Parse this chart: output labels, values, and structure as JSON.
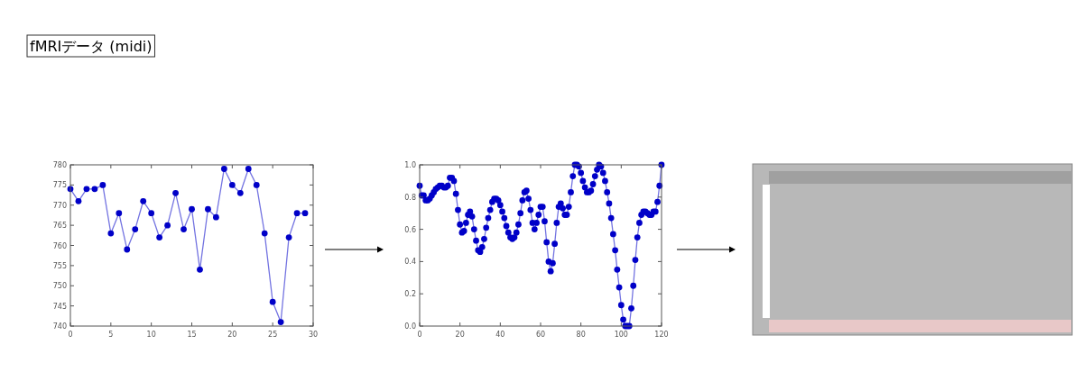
{
  "chart_data": [
    {
      "type": "line",
      "title": "fMRIデータ (midi)",
      "marker": "circle",
      "grid": false,
      "x": [
        0,
        1,
        2,
        3,
        4,
        5,
        6,
        7,
        8,
        9,
        10,
        11,
        12,
        13,
        14,
        15,
        16,
        17,
        18,
        19,
        20,
        21,
        22,
        23,
        24,
        25,
        26,
        27,
        28,
        29
      ],
      "series": [
        {
          "color": "#0000c8",
          "values": [
            774,
            771,
            774,
            774,
            775,
            763,
            768,
            759,
            764,
            771,
            768,
            762,
            765,
            773,
            764,
            769,
            754,
            769,
            767,
            779,
            775,
            773,
            779,
            775,
            763,
            746,
            741,
            762,
            768,
            768
          ]
        }
      ],
      "xlim": [
        0,
        30
      ],
      "xticks": [
        0,
        5,
        10,
        15,
        20,
        25,
        30
      ],
      "ylim": [
        740,
        780
      ],
      "yticks": [
        740,
        745,
        750,
        755,
        760,
        765,
        770,
        775,
        780
      ]
    },
    {
      "type": "line",
      "marker": "circle",
      "grid": false,
      "x": [
        0,
        1,
        2,
        3,
        4,
        5,
        6,
        7,
        8,
        9,
        10,
        11,
        12,
        13,
        14,
        15,
        16,
        17,
        18,
        19,
        20,
        21,
        22,
        23,
        24,
        25,
        26,
        27,
        28,
        29,
        30,
        31,
        32,
        33,
        34,
        35,
        36,
        37,
        38,
        39,
        40,
        41,
        42,
        43,
        44,
        45,
        46,
        47,
        48,
        49,
        50,
        51,
        52,
        53,
        54,
        55,
        56,
        57,
        58,
        59,
        60,
        61,
        62,
        63,
        64,
        65,
        66,
        67,
        68,
        69,
        70,
        71,
        72,
        73,
        74,
        75,
        76,
        77,
        78,
        79,
        80,
        81,
        82,
        83,
        84,
        85,
        86,
        87,
        88,
        89,
        90,
        91,
        92,
        93,
        94,
        95,
        96,
        97,
        98,
        99,
        100,
        101,
        102,
        103,
        104,
        105,
        106,
        107,
        108,
        109,
        110,
        111,
        112,
        113,
        114,
        115,
        116,
        117,
        118,
        119,
        120
      ],
      "series": [
        {
          "color": "#0000c8",
          "values": [
            0.87,
            0.81,
            0.81,
            0.78,
            0.78,
            0.79,
            0.81,
            0.83,
            0.85,
            0.86,
            0.87,
            0.87,
            0.86,
            0.86,
            0.87,
            0.92,
            0.92,
            0.9,
            0.82,
            0.72,
            0.63,
            0.58,
            0.59,
            0.64,
            0.69,
            0.71,
            0.68,
            0.6,
            0.53,
            0.47,
            0.46,
            0.49,
            0.54,
            0.61,
            0.67,
            0.72,
            0.77,
            0.79,
            0.79,
            0.78,
            0.75,
            0.71,
            0.67,
            0.62,
            0.58,
            0.55,
            0.54,
            0.55,
            0.58,
            0.63,
            0.7,
            0.78,
            0.83,
            0.84,
            0.79,
            0.72,
            0.64,
            0.6,
            0.64,
            0.69,
            0.74,
            0.74,
            0.65,
            0.52,
            0.4,
            0.34,
            0.39,
            0.51,
            0.64,
            0.74,
            0.76,
            0.73,
            0.69,
            0.69,
            0.74,
            0.83,
            0.93,
            1.0,
            1.0,
            0.99,
            0.95,
            0.9,
            0.86,
            0.83,
            0.83,
            0.84,
            0.88,
            0.93,
            0.97,
            1.0,
            0.99,
            0.95,
            0.9,
            0.83,
            0.76,
            0.67,
            0.57,
            0.47,
            0.35,
            0.24,
            0.13,
            0.04,
            0.0,
            0.0,
            0.0,
            0.11,
            0.25,
            0.41,
            0.55,
            0.64,
            0.69,
            0.71,
            0.71,
            0.7,
            0.69,
            0.69,
            0.71,
            0.71,
            0.77,
            0.87,
            1.0
          ]
        }
      ],
      "xlim": [
        0,
        120
      ],
      "xticks": [
        0,
        20,
        40,
        60,
        80,
        100,
        120
      ],
      "ylim": [
        0,
        1
      ],
      "yticks": [
        {
          "value": 0,
          "label": "0.0"
        },
        {
          "value": 0.2,
          "label": "0.2"
        },
        {
          "value": 0.4,
          "label": "0.4"
        },
        {
          "value": 0.6,
          "label": "0.6"
        },
        {
          "value": 0.8,
          "label": "0.8"
        },
        {
          "value": 1,
          "label": "1.0"
        }
      ]
    }
  ]
}
